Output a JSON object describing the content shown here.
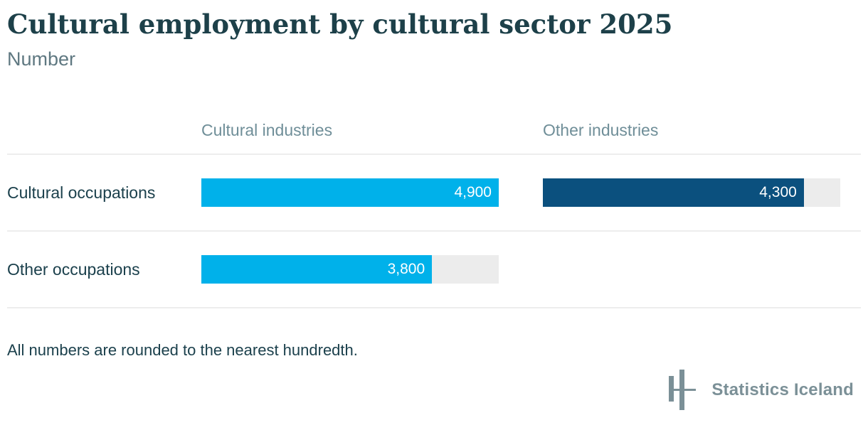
{
  "chart_data": {
    "type": "bar",
    "orientation": "horizontal",
    "title": "Cultural employment by cultural sector 2025",
    "subtitle": "Number",
    "categories": [
      "Cultural occupations",
      "Other occupations"
    ],
    "series": [
      {
        "name": "Cultural industries",
        "color": "#00b1ea",
        "values": [
          4900,
          3800
        ]
      },
      {
        "name": "Other industries",
        "color": "#0b507e",
        "values": [
          4300,
          null
        ]
      }
    ],
    "value_labels": [
      [
        "4,900",
        "3,800"
      ],
      [
        "4,300",
        null
      ]
    ],
    "xlim": [
      0,
      4900
    ],
    "grid": false,
    "legend_position": "column-headers",
    "track_color": "#ececec",
    "divider_color": "#ededed"
  },
  "footer": {
    "note": "All numbers are rounded to the nearest hundredth.",
    "brand": "Statistics Iceland"
  }
}
